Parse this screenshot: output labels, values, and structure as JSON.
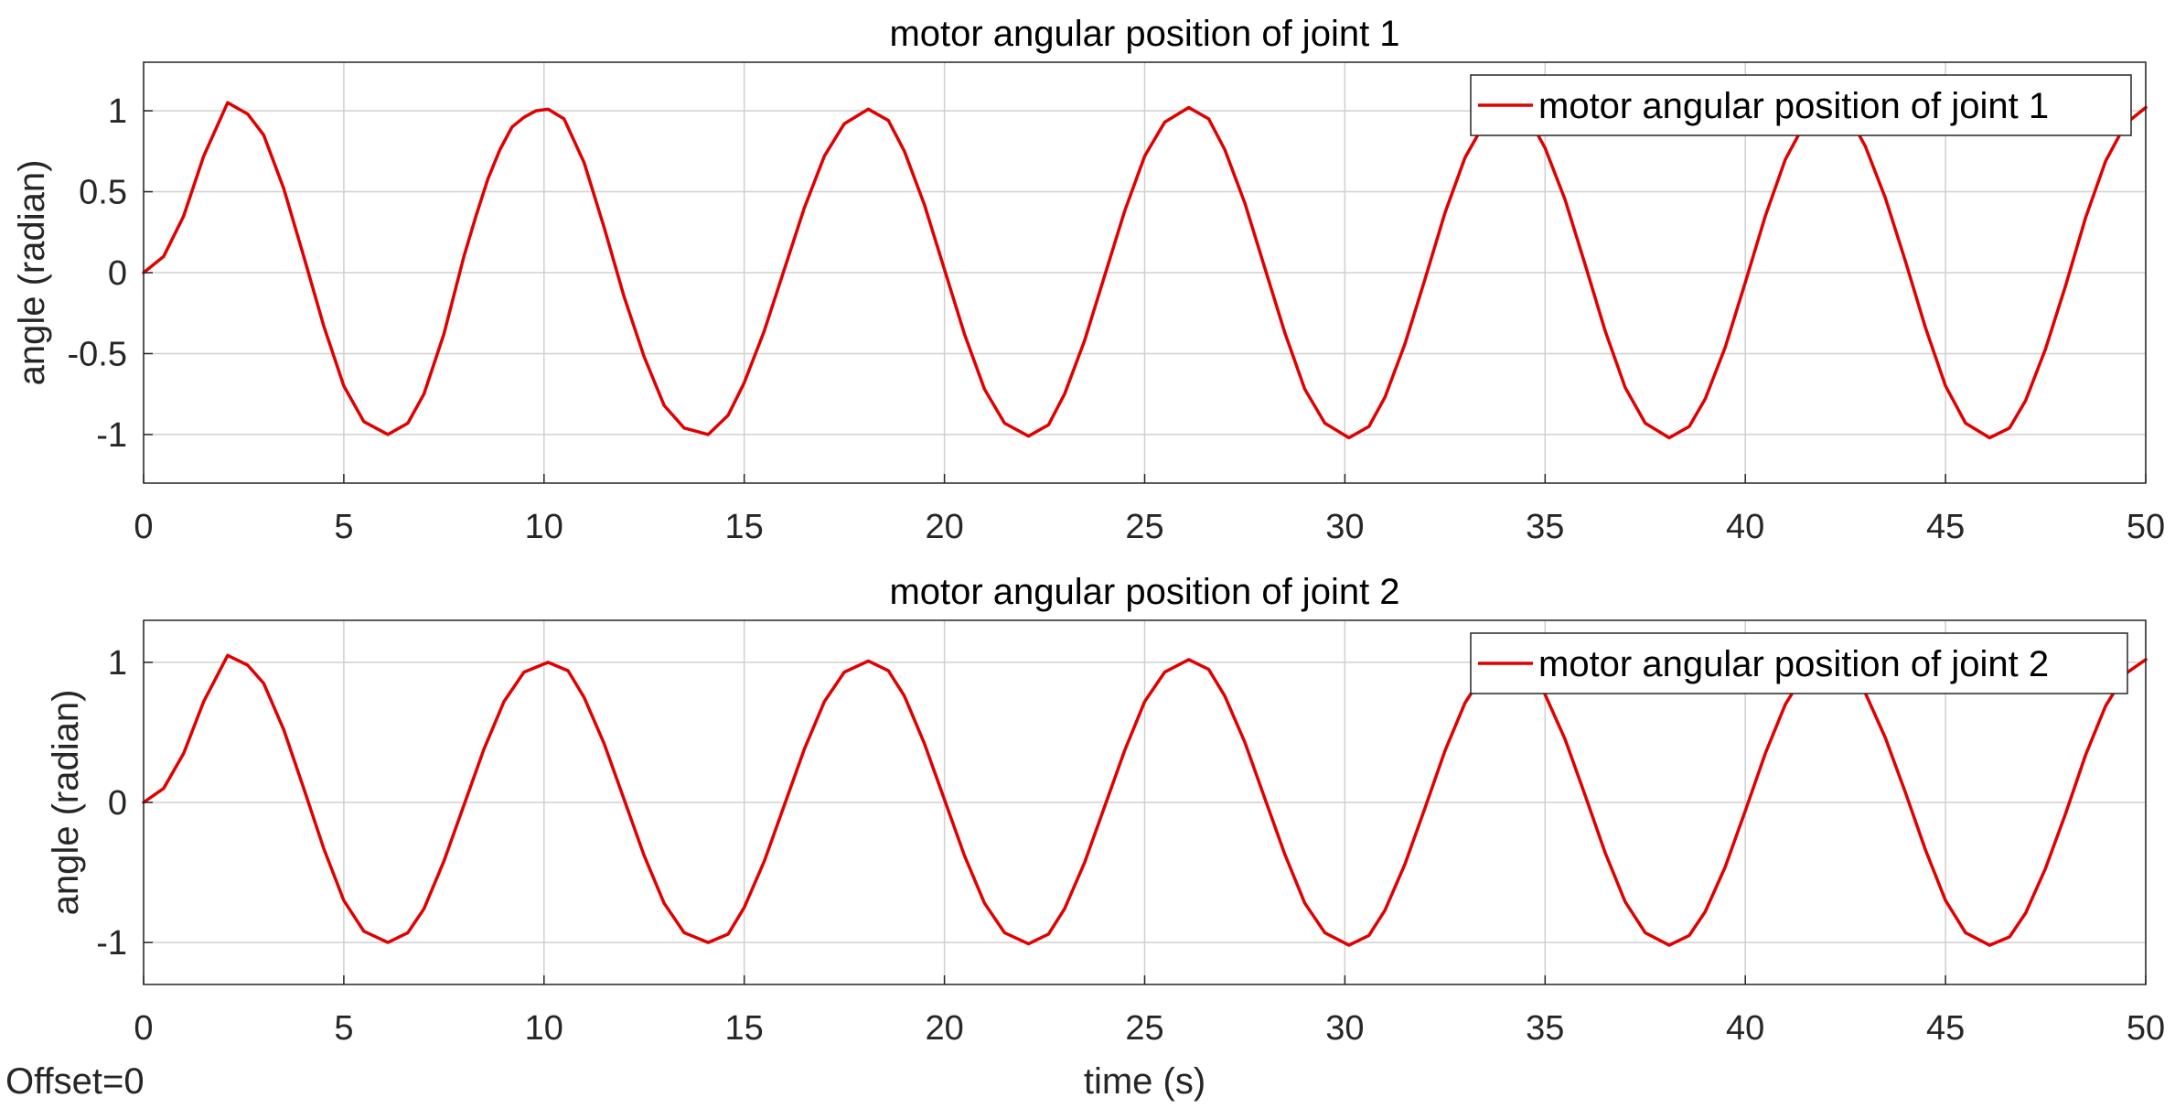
{
  "figure": {
    "footer_text": "Offset=0",
    "line_color": "#e00000"
  },
  "chart_data": [
    {
      "type": "line",
      "title": "motor angular position of joint 1",
      "xlabel": "",
      "ylabel": "angle (radian)",
      "xlim": [
        0,
        50
      ],
      "ylim": [
        -1.3,
        1.3
      ],
      "xticks": [
        "0",
        "5",
        "10",
        "15",
        "20",
        "25",
        "30",
        "35",
        "40",
        "45",
        "50"
      ],
      "yticks": [
        "-1",
        "-0.5",
        "0",
        "0.5",
        "1"
      ],
      "grid": true,
      "legend_position": "top-right",
      "series": [
        {
          "name": "motor angular position of joint 1",
          "x": [
            0,
            0.5,
            1.0,
            1.5,
            2.1,
            2.6,
            3.0,
            3.5,
            4.0,
            4.5,
            5.0,
            5.5,
            6.1,
            6.6,
            7.0,
            7.5,
            8.0,
            8.3,
            8.6,
            8.9,
            9.2,
            9.5,
            9.8,
            10.1,
            10.5,
            11.0,
            11.5,
            12.0,
            12.5,
            13.0,
            13.5,
            14.1,
            14.6,
            15.0,
            15.5,
            16.0,
            16.5,
            17.0,
            17.5,
            18.1,
            18.6,
            19.0,
            19.5,
            20.0,
            20.5,
            21.0,
            21.5,
            22.1,
            22.6,
            23.0,
            23.5,
            24.0,
            24.5,
            25.0,
            25.5,
            26.1,
            26.6,
            27.0,
            27.5,
            28.0,
            28.5,
            29.0,
            29.5,
            30.1,
            30.6,
            31.0,
            31.5,
            32.0,
            32.5,
            33.0,
            33.5,
            34.1,
            34.6,
            35.0,
            35.5,
            36.0,
            36.5,
            37.0,
            37.5,
            38.1,
            38.6,
            39.0,
            39.5,
            40.0,
            40.5,
            41.0,
            41.5,
            42.1,
            42.6,
            43.0,
            43.5,
            44.0,
            44.5,
            45.0,
            45.5,
            46.1,
            46.6,
            47.0,
            47.5,
            48.0,
            48.5,
            49.0,
            49.5,
            50.0
          ],
          "y": [
            0,
            0.1,
            0.35,
            0.72,
            1.05,
            0.98,
            0.85,
            0.52,
            0.1,
            -0.33,
            -0.7,
            -0.92,
            -1.0,
            -0.93,
            -0.75,
            -0.38,
            0.1,
            0.35,
            0.58,
            0.76,
            0.9,
            0.96,
            1.0,
            1.01,
            0.95,
            0.68,
            0.28,
            -0.15,
            -0.52,
            -0.82,
            -0.96,
            -1.0,
            -0.88,
            -0.68,
            -0.36,
            0.02,
            0.4,
            0.72,
            0.92,
            1.01,
            0.94,
            0.75,
            0.42,
            0.02,
            -0.38,
            -0.72,
            -0.93,
            -1.01,
            -0.94,
            -0.75,
            -0.42,
            -0.02,
            0.38,
            0.72,
            0.93,
            1.02,
            0.95,
            0.76,
            0.43,
            0.03,
            -0.37,
            -0.72,
            -0.93,
            -1.02,
            -0.95,
            -0.77,
            -0.44,
            -0.04,
            0.37,
            0.71,
            0.93,
            1.02,
            0.95,
            0.77,
            0.45,
            0.05,
            -0.36,
            -0.71,
            -0.93,
            -1.02,
            -0.95,
            -0.78,
            -0.46,
            -0.06,
            0.35,
            0.7,
            0.93,
            1.02,
            0.96,
            0.78,
            0.46,
            0.07,
            -0.34,
            -0.7,
            -0.93,
            -1.02,
            -0.96,
            -0.79,
            -0.47,
            -0.08,
            0.34,
            0.69,
            0.92,
            1.02
          ]
        }
      ]
    },
    {
      "type": "line",
      "title": "motor angular position of joint 2",
      "xlabel": "time (s)",
      "ylabel": "angle (radian)",
      "xlim": [
        0,
        50
      ],
      "ylim": [
        -1.3,
        1.3
      ],
      "xticks": [
        "0",
        "5",
        "10",
        "15",
        "20",
        "25",
        "30",
        "35",
        "40",
        "45",
        "50"
      ],
      "yticks": [
        "-1",
        "0",
        "1"
      ],
      "grid": true,
      "legend_position": "top-right",
      "series": [
        {
          "name": "motor angular position of joint 2",
          "x": [
            0,
            0.5,
            1.0,
            1.5,
            2.1,
            2.6,
            3.0,
            3.5,
            4.0,
            4.5,
            5.0,
            5.5,
            6.1,
            6.6,
            7.0,
            7.5,
            8.0,
            8.5,
            9.0,
            9.5,
            10.1,
            10.6,
            11.0,
            11.5,
            12.0,
            12.5,
            13.0,
            13.5,
            14.1,
            14.6,
            15.0,
            15.5,
            16.0,
            16.5,
            17.0,
            17.5,
            18.1,
            18.6,
            19.0,
            19.5,
            20.0,
            20.5,
            21.0,
            21.5,
            22.1,
            22.6,
            23.0,
            23.5,
            24.0,
            24.5,
            25.0,
            25.5,
            26.1,
            26.6,
            27.0,
            27.5,
            28.0,
            28.5,
            29.0,
            29.5,
            30.1,
            30.6,
            31.0,
            31.5,
            32.0,
            32.5,
            33.0,
            33.5,
            34.1,
            34.6,
            35.0,
            35.5,
            36.0,
            36.5,
            37.0,
            37.5,
            38.1,
            38.6,
            39.0,
            39.5,
            40.0,
            40.5,
            41.0,
            41.5,
            42.1,
            42.6,
            43.0,
            43.5,
            44.0,
            44.5,
            45.0,
            45.5,
            46.1,
            46.6,
            47.0,
            47.5,
            48.0,
            48.5,
            49.0,
            49.5,
            50.0
          ],
          "y": [
            0,
            0.1,
            0.35,
            0.72,
            1.05,
            0.98,
            0.85,
            0.52,
            0.1,
            -0.33,
            -0.7,
            -0.92,
            -1.0,
            -0.93,
            -0.76,
            -0.42,
            -0.02,
            0.38,
            0.72,
            0.93,
            1.0,
            0.94,
            0.75,
            0.42,
            0.02,
            -0.38,
            -0.72,
            -0.93,
            -1.0,
            -0.94,
            -0.75,
            -0.42,
            -0.02,
            0.38,
            0.72,
            0.93,
            1.01,
            0.94,
            0.76,
            0.42,
            0.02,
            -0.38,
            -0.72,
            -0.93,
            -1.01,
            -0.94,
            -0.76,
            -0.43,
            -0.03,
            0.37,
            0.72,
            0.93,
            1.02,
            0.95,
            0.76,
            0.43,
            0.03,
            -0.37,
            -0.72,
            -0.93,
            -1.02,
            -0.95,
            -0.77,
            -0.44,
            -0.04,
            0.37,
            0.71,
            0.93,
            1.02,
            0.95,
            0.77,
            0.45,
            0.05,
            -0.36,
            -0.71,
            -0.93,
            -1.02,
            -0.95,
            -0.78,
            -0.46,
            -0.06,
            0.35,
            0.7,
            0.93,
            1.02,
            0.96,
            0.78,
            0.46,
            0.07,
            -0.34,
            -0.7,
            -0.93,
            -1.02,
            -0.96,
            -0.79,
            -0.47,
            -0.08,
            0.34,
            0.69,
            0.92,
            1.02
          ]
        }
      ]
    }
  ]
}
